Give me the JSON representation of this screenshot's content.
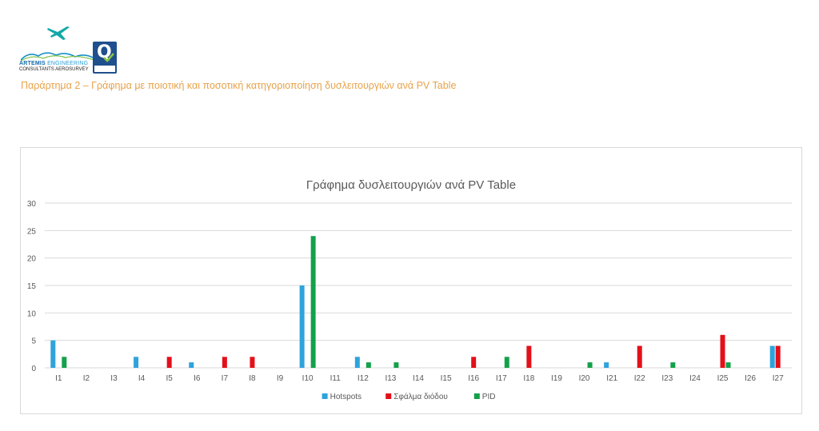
{
  "header": {
    "logo": {
      "company_line_1_strong": "ARTEMIS",
      "company_line_1_rest": "ENGINEERING",
      "company_line_2": "CONSULTANTS AEROSURVEY",
      "badge_letter": "Q"
    },
    "annex_title": "Παράρτημα 2 –  Γράφημα με ποιοτική και ποσοτική κατηγοριοποίηση δυσλειτουργιών ανά PV Table"
  },
  "colors": {
    "annex_title": "#e8a24a",
    "gridline": "#d9d9d9",
    "axis_text": "#595959"
  },
  "chart_data": {
    "type": "bar",
    "title": "Γράφημα δυσλειτουργιών ανά PV Table",
    "xlabel": "",
    "ylabel": "",
    "ylim": [
      0,
      30
    ],
    "yticks": [
      0,
      5,
      10,
      15,
      20,
      25,
      30
    ],
    "grid": true,
    "legend_position": "bottom",
    "categories": [
      "I1",
      "I2",
      "I3",
      "I4",
      "I5",
      "I6",
      "I7",
      "I8",
      "I9",
      "I10",
      "I11",
      "I12",
      "I13",
      "I14",
      "I15",
      "I16",
      "I17",
      "I18",
      "I19",
      "I20",
      "I21",
      "I22",
      "I23",
      "I24",
      "I25",
      "I26",
      "I27"
    ],
    "series": [
      {
        "name": "Hotspots",
        "color": "#2ea3dc",
        "values": [
          5,
          0,
          0,
          2,
          0,
          1,
          0,
          0,
          0,
          15,
          0,
          2,
          0,
          0,
          0,
          0,
          0,
          0,
          0,
          0,
          1,
          0,
          0,
          0,
          0,
          0,
          4
        ]
      },
      {
        "name": "Σφάλμα διόδου",
        "color": "#e3101a",
        "values": [
          0,
          0,
          0,
          0,
          2,
          0,
          2,
          2,
          0,
          0,
          0,
          0,
          0,
          0,
          0,
          2,
          0,
          4,
          0,
          0,
          0,
          4,
          0,
          0,
          6,
          0,
          4
        ]
      },
      {
        "name": "PID",
        "color": "#13a14a",
        "values": [
          2,
          0,
          0,
          0,
          0,
          0,
          0,
          0,
          0,
          24,
          0,
          1,
          1,
          0,
          0,
          0,
          2,
          0,
          0,
          1,
          0,
          0,
          1,
          0,
          1,
          0,
          0
        ]
      }
    ]
  }
}
